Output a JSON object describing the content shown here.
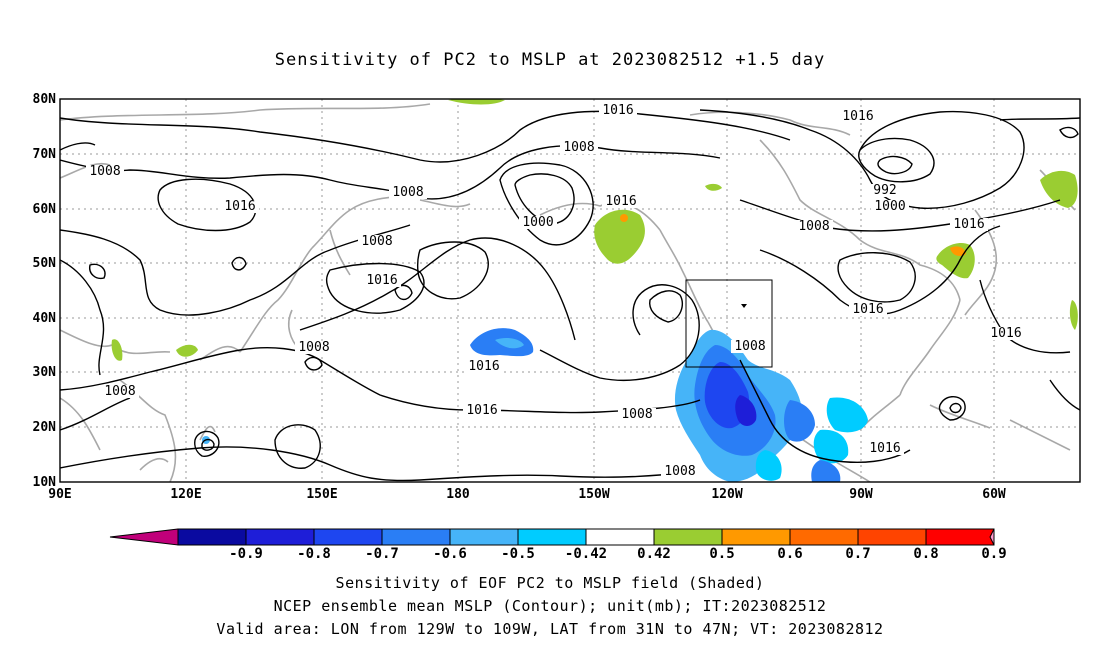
{
  "title": "Sensitivity of PC2 to MSLP at 2023082512 +1.5 day",
  "map": {
    "lon_labels": [
      "90E",
      "120E",
      "150E",
      "180",
      "150W",
      "120W",
      "90W",
      "60W"
    ],
    "lat_labels": [
      "80N",
      "70N",
      "60N",
      "50N",
      "40N",
      "30N",
      "20N",
      "10N"
    ],
    "lon_range": [
      90,
      310
    ],
    "lat_range": [
      10,
      80
    ],
    "gridlines": "dotted",
    "valid_box": {
      "lon_w": -129,
      "lon_e": -109,
      "lat_s": 31,
      "lat_n": 47
    }
  },
  "contour_labels": [
    "1016",
    "1008",
    "1008",
    "1000",
    "992",
    "1000",
    "1008",
    "1016",
    "1008",
    "1016",
    "1008",
    "1016",
    "1016",
    "1016",
    "1008",
    "1016",
    "1008",
    "1016",
    "1008",
    "1008",
    "1016",
    "1008",
    "1016",
    "1016"
  ],
  "colorbar": {
    "labels": [
      "-0.9",
      "-0.8",
      "-0.7",
      "-0.6",
      "-0.5",
      "-0.42",
      "0.42",
      "0.5",
      "0.6",
      "0.7",
      "0.8",
      "0.9"
    ],
    "colors": [
      "#0a0aa0",
      "#1e1ed8",
      "#1e46f0",
      "#2a7ef5",
      "#46b4f8",
      "#00ccff",
      "#ffffff",
      "#9acd32",
      "#ff9900",
      "#ff6a00",
      "#ff4400",
      "#ff0000"
    ],
    "end_low": "#c0007a",
    "end_high": "#ff99cc"
  },
  "captions": [
    "Sensitivity of EOF PC2 to MSLP field (Shaded)",
    "NCEP ensemble mean MSLP (Contour); unit(mb); IT:2023082512",
    "Valid area: LON from 129W to 109W, LAT from 31N to 47N; VT: 2023082812"
  ]
}
